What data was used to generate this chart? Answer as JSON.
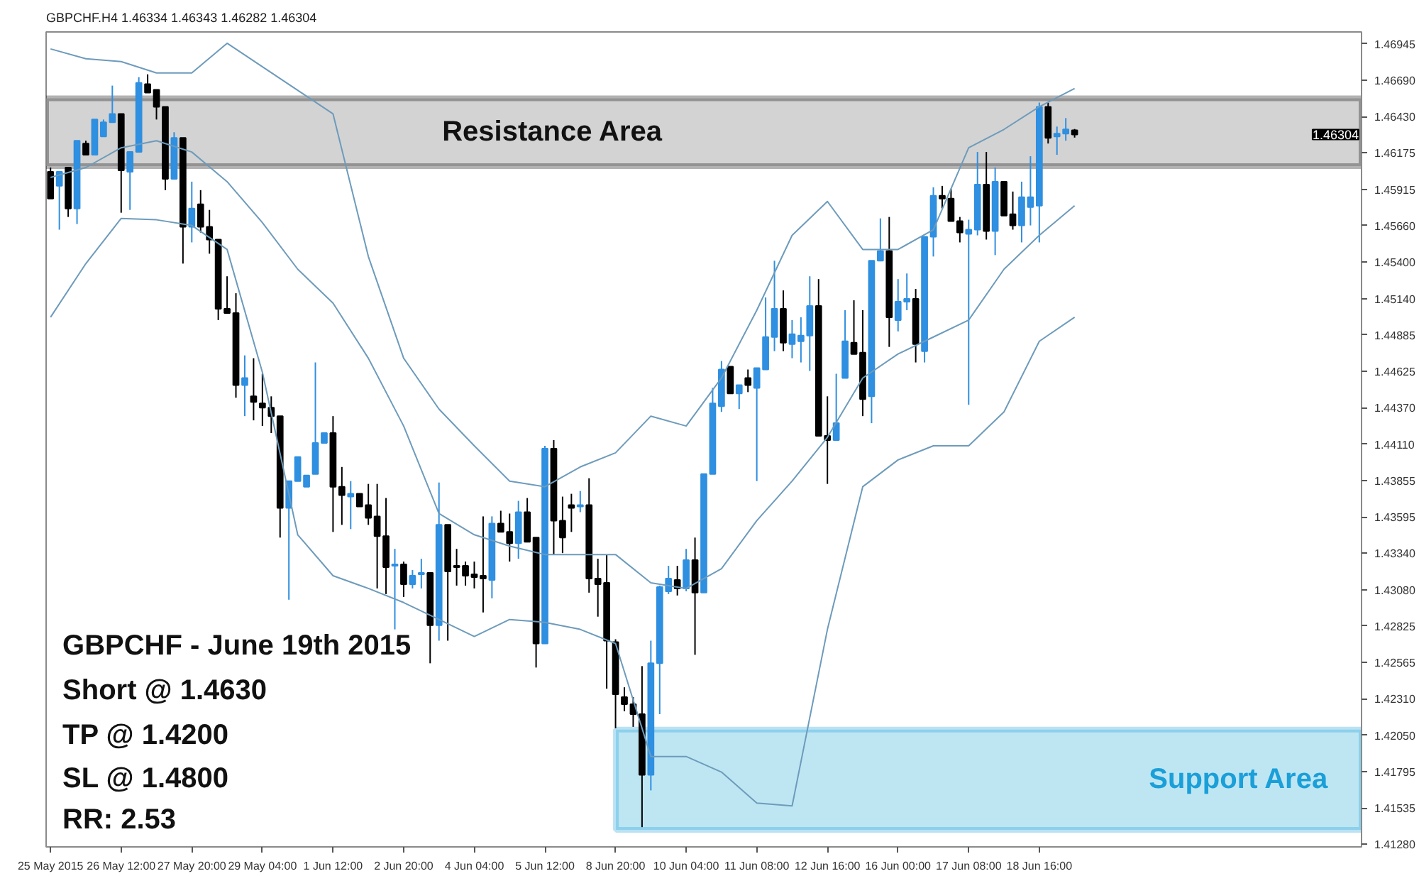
{
  "chart_data": {
    "type": "candlestick",
    "title": "GBPCHF.H4  1.46334 1.46343 1.46282 1.46304",
    "categories": [
      "25 May 2015",
      null,
      null,
      null,
      null,
      null,
      null,
      null,
      "26 May 12:00",
      null,
      null,
      null,
      null,
      null,
      null,
      null,
      "27 May 20:00",
      null,
      null,
      null,
      null,
      null,
      null,
      null,
      "29 May 04:00",
      null,
      null,
      null,
      null,
      null,
      null,
      null,
      "1 Jun 12:00",
      null,
      null,
      null,
      null,
      null,
      null,
      null,
      "2 Jun 20:00",
      null,
      null,
      null,
      null,
      null,
      null,
      null,
      "4 Jun 04:00",
      null,
      null,
      null,
      null,
      null,
      null,
      null,
      "5 Jun 12:00",
      null,
      null,
      null,
      null,
      null,
      null,
      null,
      "8 Jun 20:00",
      null,
      null,
      null,
      null,
      null,
      null,
      null,
      "10 Jun 04:00",
      null,
      null,
      null,
      null,
      null,
      null,
      null,
      "11 Jun 08:00",
      null,
      null,
      null,
      null,
      null,
      null,
      null,
      "12 Jun 16:00",
      null,
      null,
      null,
      null,
      null,
      null,
      null,
      "16 Jun 00:00",
      null,
      null,
      null,
      null,
      null,
      null,
      null,
      "17 Jun 08:00",
      null,
      null,
      null,
      null,
      null,
      null,
      null,
      "18 Jun 16:00",
      null,
      null,
      null,
      null,
      null,
      null,
      null,
      null,
      null,
      null,
      null,
      null,
      null,
      null,
      null,
      null,
      null,
      null,
      null,
      null,
      null,
      null,
      null,
      null,
      null,
      null,
      null,
      null,
      null,
      null,
      null,
      null,
      null,
      null,
      null,
      null
    ],
    "ohlc": [
      [
        1.4604,
        1.4607,
        1.4585,
        1.4585
      ],
      [
        1.4594,
        1.4604,
        1.4563,
        1.4604
      ],
      [
        1.4607,
        1.4607,
        1.4572,
        1.4578
      ],
      [
        1.4578,
        1.4626,
        1.4567,
        1.4626
      ],
      [
        1.4624,
        1.4626,
        1.4616,
        1.4616
      ],
      [
        1.4616,
        1.4641,
        1.4616,
        1.4641
      ],
      [
        1.4629,
        1.4641,
        1.4629,
        1.4639
      ],
      [
        1.4639,
        1.4665,
        1.4639,
        1.4645
      ],
      [
        1.4645,
        1.4645,
        1.4575,
        1.4605
      ],
      [
        1.4604,
        1.4618,
        1.4577,
        1.4618
      ],
      [
        1.4618,
        1.4671,
        1.4618,
        1.4667
      ],
      [
        1.4666,
        1.4673,
        1.466,
        1.466
      ],
      [
        1.4662,
        1.4662,
        1.4641,
        1.465
      ],
      [
        1.465,
        1.465,
        1.4591,
        1.4599
      ],
      [
        1.4599,
        1.4632,
        1.4599,
        1.4628
      ],
      [
        1.4628,
        1.4628,
        1.4539,
        1.4565
      ],
      [
        1.4565,
        1.4597,
        1.4554,
        1.4578
      ],
      [
        1.4581,
        1.4591,
        1.4561,
        1.4565
      ],
      [
        1.4565,
        1.4577,
        1.4546,
        1.4556
      ],
      [
        1.4556,
        1.4556,
        1.4499,
        1.4507
      ],
      [
        1.4507,
        1.453,
        1.4504,
        1.4504
      ],
      [
        1.4504,
        1.4518,
        1.4444,
        1.4453
      ],
      [
        1.4453,
        1.4474,
        1.4431,
        1.4458
      ],
      [
        1.4445,
        1.4472,
        1.4428,
        1.4441
      ],
      [
        1.444,
        1.4461,
        1.4424,
        1.4437
      ],
      [
        1.4437,
        1.4445,
        1.4419,
        1.4431
      ],
      [
        1.4431,
        1.4431,
        1.4345,
        1.4366
      ],
      [
        1.4366,
        1.4385,
        1.4301,
        1.4385
      ],
      [
        1.4385,
        1.4402,
        1.4385,
        1.4402
      ],
      [
        1.4381,
        1.4389,
        1.4381,
        1.4389
      ],
      [
        1.439,
        1.4469,
        1.439,
        1.4412
      ],
      [
        1.4412,
        1.4419,
        1.4412,
        1.4419
      ],
      [
        1.4419,
        1.4431,
        1.4349,
        1.4381
      ],
      [
        1.4381,
        1.4395,
        1.4354,
        1.4375
      ],
      [
        1.4374,
        1.4385,
        1.4351,
        1.4376
      ],
      [
        1.4376,
        1.4376,
        1.4367,
        1.4367
      ],
      [
        1.4368,
        1.4383,
        1.4354,
        1.4359
      ],
      [
        1.436,
        1.4383,
        1.4309,
        1.4346
      ],
      [
        1.4346,
        1.4373,
        1.4305,
        1.4324
      ],
      [
        1.4325,
        1.4337,
        1.428,
        1.4326
      ],
      [
        1.4326,
        1.4328,
        1.4303,
        1.4312
      ],
      [
        1.4312,
        1.4322,
        1.4309,
        1.4318
      ],
      [
        1.4319,
        1.433,
        1.4309,
        1.432
      ],
      [
        1.432,
        1.432,
        1.4256,
        1.4283
      ],
      [
        1.4283,
        1.4384,
        1.4272,
        1.4354
      ],
      [
        1.4354,
        1.4354,
        1.4272,
        1.4321
      ],
      [
        1.4325,
        1.4337,
        1.4311,
        1.4324
      ],
      [
        1.4325,
        1.4328,
        1.4311,
        1.4318
      ],
      [
        1.4319,
        1.4328,
        1.4309,
        1.4317
      ],
      [
        1.4318,
        1.436,
        1.4292,
        1.4316
      ],
      [
        1.4315,
        1.436,
        1.4302,
        1.4355
      ],
      [
        1.4355,
        1.4364,
        1.4349,
        1.4349
      ],
      [
        1.4349,
        1.4362,
        1.4328,
        1.4341
      ],
      [
        1.4341,
        1.4371,
        1.433,
        1.4363
      ],
      [
        1.4363,
        1.4373,
        1.4342,
        1.4342
      ],
      [
        1.4345,
        1.4345,
        1.4253,
        1.427
      ],
      [
        1.427,
        1.441,
        1.427,
        1.4408
      ],
      [
        1.4408,
        1.4414,
        1.4333,
        1.4357
      ],
      [
        1.4357,
        1.4374,
        1.4334,
        1.4345
      ],
      [
        1.4368,
        1.4376,
        1.4349,
        1.4366
      ],
      [
        1.4367,
        1.4378,
        1.4363,
        1.4368
      ],
      [
        1.4368,
        1.4387,
        1.4306,
        1.4316
      ],
      [
        1.4316,
        1.433,
        1.4289,
        1.4312
      ],
      [
        1.4313,
        1.4333,
        1.4238,
        1.4272
      ],
      [
        1.4271,
        1.4273,
        1.421,
        1.4234
      ],
      [
        1.4232,
        1.4239,
        1.4222,
        1.4227
      ],
      [
        1.4227,
        1.4232,
        1.4211,
        1.422
      ],
      [
        1.422,
        1.4254,
        1.414,
        1.4177
      ],
      [
        1.4177,
        1.4272,
        1.4166,
        1.4256
      ],
      [
        1.4256,
        1.4311,
        1.422,
        1.431
      ],
      [
        1.4307,
        1.4325,
        1.4305,
        1.4316
      ],
      [
        1.4315,
        1.4325,
        1.4304,
        1.4309
      ],
      [
        1.4309,
        1.4337,
        1.4307,
        1.4329
      ],
      [
        1.4329,
        1.4345,
        1.4262,
        1.4306
      ],
      [
        1.4306,
        1.439,
        1.4306,
        1.439
      ],
      [
        1.439,
        1.4451,
        1.439,
        1.444
      ],
      [
        1.4438,
        1.447,
        1.4434,
        1.4464
      ],
      [
        1.4466,
        1.4466,
        1.4447,
        1.4447
      ],
      [
        1.4447,
        1.4453,
        1.4436,
        1.4453
      ],
      [
        1.4458,
        1.4464,
        1.4448,
        1.4453
      ],
      [
        1.4451,
        1.4465,
        1.4385,
        1.4465
      ],
      [
        1.4464,
        1.4515,
        1.4464,
        1.4487
      ],
      [
        1.4487,
        1.4541,
        1.4477,
        1.4507
      ],
      [
        1.4507,
        1.452,
        1.4477,
        1.4483
      ],
      [
        1.4482,
        1.4499,
        1.4472,
        1.4489
      ],
      [
        1.4484,
        1.4501,
        1.4469,
        1.4488
      ],
      [
        1.4488,
        1.453,
        1.4463,
        1.4509
      ],
      [
        1.4509,
        1.4528,
        1.4417,
        1.4417
      ],
      [
        1.4417,
        1.4445,
        1.4383,
        1.4414
      ],
      [
        1.4414,
        1.4461,
        1.4414,
        1.4426
      ],
      [
        1.4458,
        1.4506,
        1.4458,
        1.4484
      ],
      [
        1.4483,
        1.4513,
        1.4475,
        1.4475
      ],
      [
        1.4476,
        1.4506,
        1.4431,
        1.4443
      ],
      [
        1.4445,
        1.4541,
        1.4426,
        1.4541
      ],
      [
        1.4541,
        1.4571,
        1.4541,
        1.4548
      ],
      [
        1.4548,
        1.4572,
        1.448,
        1.4501
      ],
      [
        1.4499,
        1.4528,
        1.4491,
        1.4512
      ],
      [
        1.4512,
        1.4532,
        1.4506,
        1.4514
      ],
      [
        1.4514,
        1.4521,
        1.4469,
        1.4482
      ],
      [
        1.4477,
        1.4558,
        1.4469,
        1.4558
      ],
      [
        1.4558,
        1.4593,
        1.4544,
        1.4587
      ],
      [
        1.4587,
        1.4594,
        1.4578,
        1.4585
      ],
      [
        1.4585,
        1.4592,
        1.4569,
        1.4569
      ],
      [
        1.4569,
        1.4572,
        1.4554,
        1.4561
      ],
      [
        1.456,
        1.457,
        1.4439,
        1.4563
      ],
      [
        1.4563,
        1.4618,
        1.4559,
        1.4595
      ],
      [
        1.4595,
        1.4618,
        1.4556,
        1.4562
      ],
      [
        1.4562,
        1.4607,
        1.4545,
        1.4597
      ],
      [
        1.4597,
        1.4597,
        1.4573,
        1.4573
      ],
      [
        1.4574,
        1.459,
        1.4563,
        1.4566
      ],
      [
        1.4566,
        1.4597,
        1.4554,
        1.4586
      ],
      [
        1.4579,
        1.4615,
        1.4566,
        1.4586
      ],
      [
        1.458,
        1.4653,
        1.4554,
        1.465
      ],
      [
        1.465,
        1.4653,
        1.4624,
        1.4628
      ],
      [
        1.4629,
        1.4636,
        1.4616,
        1.4631
      ],
      [
        1.4631,
        1.4642,
        1.4626,
        1.4634
      ],
      [
        1.46334,
        1.46343,
        1.46282,
        1.46304
      ],
      null,
      null,
      null,
      null,
      null,
      null,
      null,
      null,
      null,
      null,
      null,
      null,
      null,
      null,
      null,
      null,
      null,
      null,
      null,
      null,
      null,
      null,
      null,
      null,
      null,
      null,
      null,
      null,
      null,
      null,
      null,
      null
    ],
    "colors": [
      "#000000",
      "#2f8fe0",
      "#000000",
      "#2f8fe0",
      "#000000",
      "#2f8fe0",
      "#2f8fe0",
      "#2f8fe0",
      "#000000",
      "#2f8fe0",
      "#2f8fe0",
      "#000000",
      "#000000",
      "#000000",
      "#2f8fe0",
      "#000000",
      "#2f8fe0",
      "#000000",
      "#000000",
      "#000000",
      "#000000",
      "#000000",
      "#2f8fe0",
      "#000000",
      "#000000",
      "#000000",
      "#000000",
      "#2f8fe0",
      "#2f8fe0",
      "#2f8fe0",
      "#2f8fe0",
      "#2f8fe0",
      "#000000",
      "#000000",
      "#2f8fe0",
      "#000000",
      "#000000",
      "#000000",
      "#000000",
      "#2f8fe0",
      "#000000",
      "#2f8fe0",
      "#2f8fe0",
      "#000000",
      "#2f8fe0",
      "#000000",
      "#000000",
      "#000000",
      "#000000",
      "#000000",
      "#2f8fe0",
      "#000000",
      "#000000",
      "#2f8fe0",
      "#000000",
      "#000000",
      "#2f8fe0",
      "#000000",
      "#000000",
      "#000000",
      "#2f8fe0",
      "#000000",
      "#000000",
      "#000000",
      "#000000",
      "#000000",
      "#000000",
      "#000000",
      "#2f8fe0",
      "#2f8fe0",
      "#2f8fe0",
      "#000000",
      "#2f8fe0",
      "#000000",
      "#2f8fe0",
      "#2f8fe0",
      "#2f8fe0",
      "#000000",
      "#2f8fe0",
      "#000000",
      "#2f8fe0",
      "#2f8fe0",
      "#2f8fe0",
      "#000000",
      "#2f8fe0",
      "#2f8fe0",
      "#2f8fe0",
      "#000000",
      "#000000",
      "#2f8fe0",
      "#2f8fe0",
      "#000000",
      "#000000",
      "#2f8fe0",
      "#2f8fe0",
      "#000000",
      "#2f8fe0",
      "#2f8fe0",
      "#000000",
      "#2f8fe0",
      "#2f8fe0",
      "#000000",
      "#000000",
      "#000000",
      "#2f8fe0",
      "#2f8fe0",
      "#000000",
      "#2f8fe0",
      "#000000",
      "#000000",
      "#2f8fe0",
      "#2f8fe0",
      "#2f8fe0",
      "#000000",
      "#2f8fe0",
      "#2f8fe0",
      "#000000",
      null,
      null,
      null,
      null,
      null,
      null,
      null,
      null,
      null,
      null,
      null,
      null,
      null,
      null,
      null,
      null,
      null,
      null,
      null,
      null,
      null,
      null,
      null,
      null,
      null,
      null,
      null,
      null,
      null,
      null,
      null,
      null
    ],
    "series": [
      {
        "type": "line",
        "color": "#6d9bbb",
        "values": [
          1.4691,
          null,
          null,
          null,
          1.4684,
          null,
          null,
          null,
          1.4682,
          null,
          null,
          null,
          1.4674,
          null,
          null,
          null,
          1.4674,
          null,
          null,
          null,
          1.4695,
          null,
          null,
          null,
          null,
          null,
          null,
          null,
          null,
          null,
          null,
          null,
          1.4645,
          null,
          null,
          null,
          1.4544,
          null,
          null,
          null,
          1.4472,
          null,
          null,
          null,
          1.4436,
          null,
          null,
          null,
          1.441,
          null,
          null,
          null,
          1.4385,
          null,
          null,
          null,
          1.4381,
          null,
          null,
          null,
          1.4395,
          null,
          null,
          null,
          1.4405,
          null,
          null,
          null,
          1.4431,
          null,
          null,
          null,
          1.4424,
          null,
          null,
          null,
          1.4458,
          null,
          null,
          null,
          1.4506,
          null,
          null,
          null,
          1.4559,
          null,
          null,
          null,
          1.4583,
          null,
          null,
          null,
          1.4549,
          null,
          null,
          null,
          1.4549,
          null,
          null,
          null,
          1.4563,
          null,
          null,
          null,
          1.4621,
          null,
          null,
          null,
          1.4634,
          null,
          null,
          null,
          1.465,
          null,
          null,
          null,
          1.4663,
          null,
          null,
          null,
          null,
          null,
          null,
          null,
          null,
          null,
          null,
          null,
          null,
          null,
          null,
          null,
          null,
          null,
          null,
          null,
          null,
          null,
          null,
          null,
          null,
          null,
          null,
          null,
          null,
          null,
          null,
          null,
          null
        ]
      },
      {
        "type": "line",
        "color": "#6d9bbb",
        "values": [
          1.46,
          null,
          null,
          null,
          1.4607,
          null,
          null,
          null,
          1.4621,
          null,
          null,
          null,
          1.4626,
          null,
          null,
          null,
          1.4618,
          null,
          null,
          null,
          1.4597,
          null,
          null,
          null,
          1.4568,
          null,
          null,
          null,
          1.4535,
          null,
          null,
          null,
          1.4511,
          null,
          null,
          null,
          1.4472,
          null,
          null,
          null,
          1.4424,
          null,
          null,
          null,
          1.4362,
          null,
          null,
          null,
          1.4347,
          null,
          null,
          null,
          1.4339,
          null,
          null,
          null,
          1.4333,
          null,
          null,
          null,
          1.4333,
          null,
          null,
          null,
          1.4333,
          null,
          null,
          null,
          1.4313,
          null,
          null,
          null,
          1.4309,
          null,
          null,
          null,
          1.4323,
          null,
          null,
          null,
          1.4357,
          null,
          null,
          null,
          1.4385,
          null,
          null,
          null,
          1.4416,
          null,
          null,
          null,
          1.4458,
          null,
          null,
          null,
          1.4475,
          null,
          null,
          null,
          1.4487,
          null,
          null,
          null,
          1.4499,
          null,
          null,
          null,
          1.4535,
          null,
          null,
          null,
          1.4559,
          null,
          null,
          null,
          1.458,
          null,
          null,
          null,
          null,
          null,
          null,
          null,
          null,
          null,
          null,
          null,
          null,
          null,
          null,
          null,
          null,
          null,
          null,
          null,
          null,
          null,
          null,
          null,
          null,
          null,
          null,
          null,
          null,
          null,
          null,
          null,
          null
        ]
      },
      {
        "type": "line",
        "color": "#6d9bbb",
        "values": [
          1.4501,
          null,
          null,
          null,
          1.4539,
          null,
          null,
          null,
          1.4571,
          null,
          null,
          null,
          1.457,
          null,
          null,
          null,
          1.4566,
          null,
          null,
          null,
          1.4549,
          null,
          null,
          null,
          1.4462,
          null,
          null,
          null,
          1.4347,
          null,
          null,
          null,
          1.4318,
          null,
          null,
          null,
          1.4309,
          null,
          null,
          null,
          1.4299,
          null,
          null,
          null,
          1.4287,
          null,
          null,
          null,
          1.4275,
          null,
          null,
          null,
          1.4287,
          null,
          null,
          null,
          1.4285,
          null,
          null,
          null,
          1.428,
          null,
          null,
          null,
          1.427,
          null,
          null,
          null,
          1.419,
          null,
          null,
          null,
          1.419,
          null,
          null,
          null,
          1.4179,
          null,
          null,
          null,
          1.4157,
          null,
          null,
          null,
          1.4155,
          null,
          null,
          null,
          1.428,
          null,
          null,
          null,
          1.4381,
          null,
          null,
          null,
          1.44,
          null,
          null,
          null,
          1.441,
          null,
          null,
          null,
          1.441,
          null,
          null,
          null,
          1.4434,
          null,
          null,
          null,
          1.4484,
          null,
          null,
          null,
          1.4501,
          null,
          null,
          null,
          null,
          null,
          null,
          null,
          null,
          null,
          null,
          null,
          null,
          null,
          null,
          null,
          null,
          null,
          null,
          null,
          null,
          null,
          null,
          null,
          null,
          null,
          null,
          null,
          null,
          null,
          null,
          null,
          null
        ]
      }
    ],
    "ylim": [
      1.4126,
      1.4703
    ],
    "yticks": [
      1.46945,
      {
        "value": 1.4669,
        "label": "1.46690"
      },
      {
        "value": 1.4643,
        "label": "1.46430"
      },
      1.46175,
      1.45915,
      {
        "value": 1.4566,
        "label": "1.45660"
      },
      {
        "value": 1.454,
        "label": "1.45400"
      },
      {
        "value": 1.4514,
        "label": "1.45140"
      },
      1.44885,
      1.44625,
      {
        "value": 1.4437,
        "label": "1.44370"
      },
      {
        "value": 1.4411,
        "label": "1.44110"
      },
      1.43855,
      1.43595,
      {
        "value": 1.4334,
        "label": "1.43340"
      },
      {
        "value": 1.4308,
        "label": "1.43080"
      },
      1.42825,
      1.42565,
      {
        "value": 1.4231,
        "label": "1.42310"
      },
      {
        "value": 1.4205,
        "label": "1.42050"
      },
      1.41795,
      1.41535,
      {
        "value": 1.4128,
        "label": "1.41280"
      }
    ],
    "bands": [
      {
        "axis": "y",
        "from": 1.4608,
        "to": 1.4656,
        "label": "Resistance Area",
        "color": "#c8c8c8"
      },
      {
        "axis": "y",
        "from": 1.4138,
        "to": 1.4209,
        "label": "Support Area",
        "color": "#aee0ef"
      }
    ],
    "annotations": [
      "1.46304",
      "GBPCHF - June 19th 2015",
      "Short @ 1.4630",
      "TP @ 1.4200",
      "SL @ 1.4800",
      "RR: 2.53"
    ],
    "grid": false
  }
}
